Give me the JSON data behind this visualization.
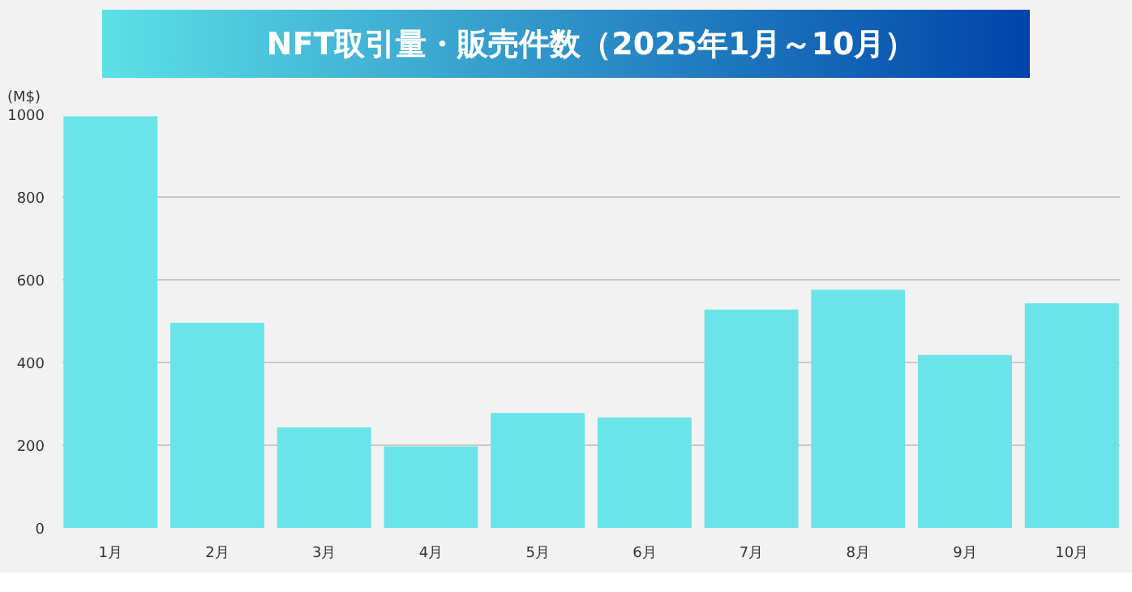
{
  "chart_data": {
    "type": "bar",
    "title": "NFT取引量・販売件数（2025年1月～10月）",
    "ylabel": "(M$)",
    "categories": [
      "1月",
      "2月",
      "3月",
      "4月",
      "5月",
      "6月",
      "7月",
      "8月",
      "9月",
      "10月"
    ],
    "values": [
      995,
      496,
      243,
      197,
      278,
      267,
      528,
      576,
      418,
      543
    ],
    "color": "#6ae4e8",
    "ylim": [
      0,
      1000
    ],
    "yticks": [
      0,
      200,
      400,
      600,
      800,
      1000
    ],
    "grid": "y"
  }
}
